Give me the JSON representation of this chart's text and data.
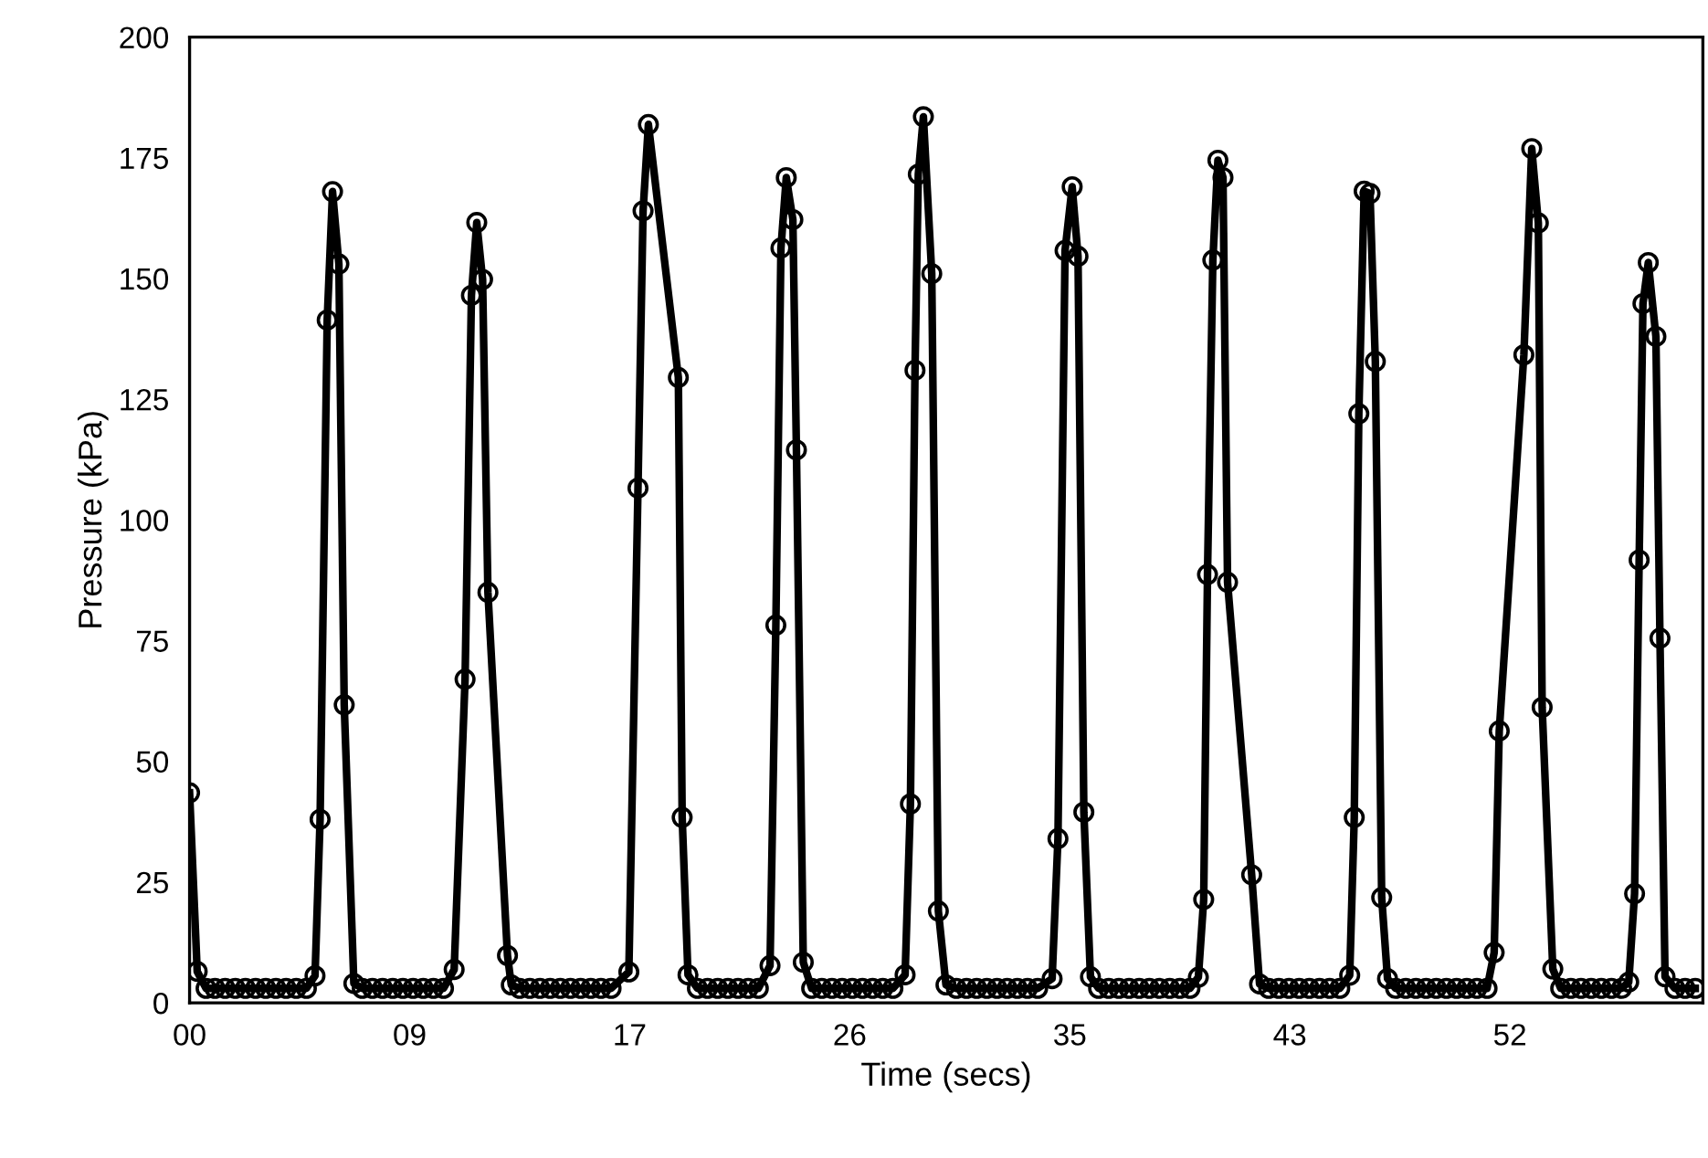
{
  "chart_data": {
    "type": "line",
    "xlabel": "Time (secs)",
    "ylabel": "Pressure (kPa)",
    "xlim": [
      0,
      59.6
    ],
    "ylim": [
      0,
      200
    ],
    "xticks": [
      {
        "value": 0,
        "label": "00"
      },
      {
        "value": 8.667,
        "label": "09"
      },
      {
        "value": 17.333,
        "label": "17"
      },
      {
        "value": 26,
        "label": "26"
      },
      {
        "value": 34.667,
        "label": "35"
      },
      {
        "value": 43.333,
        "label": "43"
      },
      {
        "value": 52,
        "label": "52"
      }
    ],
    "yticks": [
      0,
      25,
      50,
      75,
      100,
      125,
      150,
      175,
      200
    ],
    "grid": false,
    "marker": "circle",
    "line_style": "solid",
    "series": [
      {
        "color": "#000000",
        "x": [
          0,
          0.3,
          0.65,
          1.0,
          1.4,
          1.8,
          2.2,
          2.6,
          3.0,
          3.4,
          3.8,
          4.2,
          4.6,
          4.94,
          5.14,
          5.42,
          5.63,
          5.88,
          6.09,
          6.47,
          6.8,
          7.2,
          7.6,
          8.0,
          8.4,
          8.8,
          9.2,
          9.6,
          10.0,
          10.42,
          10.85,
          11.1,
          11.31,
          11.54,
          11.75,
          12.52,
          12.67,
          13.0,
          13.4,
          13.8,
          14.2,
          14.6,
          15.0,
          15.4,
          15.8,
          16.2,
          16.6,
          17.3,
          17.66,
          17.86,
          18.07,
          19.25,
          19.4,
          19.63,
          20.0,
          20.4,
          20.8,
          21.2,
          21.6,
          22.0,
          22.4,
          22.86,
          23.09,
          23.29,
          23.5,
          23.76,
          23.9,
          24.17,
          24.5,
          24.9,
          25.3,
          25.7,
          26.1,
          26.5,
          26.9,
          27.3,
          27.7,
          28.18,
          28.39,
          28.57,
          28.7,
          28.9,
          29.23,
          29.49,
          29.79,
          30.2,
          30.6,
          31.0,
          31.4,
          31.8,
          32.2,
          32.6,
          33.0,
          33.4,
          33.97,
          34.2,
          34.48,
          34.76,
          34.99,
          35.22,
          35.48,
          35.8,
          36.2,
          36.6,
          37.0,
          37.4,
          37.8,
          38.2,
          38.6,
          39.0,
          39.4,
          39.73,
          39.94,
          40.09,
          40.3,
          40.5,
          40.7,
          40.88,
          41.83,
          42.14,
          42.5,
          42.9,
          43.3,
          43.7,
          44.1,
          44.5,
          44.9,
          45.3,
          45.69,
          45.87,
          46.05,
          46.26,
          46.49,
          46.7,
          46.95,
          47.18,
          47.5,
          47.9,
          48.3,
          48.7,
          49.1,
          49.5,
          49.9,
          50.3,
          50.7,
          51.1,
          51.38,
          51.58,
          52.55,
          52.86,
          53.12,
          53.27,
          53.69,
          54.0,
          54.4,
          54.8,
          55.2,
          55.6,
          56.0,
          56.4,
          56.68,
          56.91,
          57.09,
          57.24,
          57.45,
          57.75,
          57.91,
          58.11,
          58.5,
          58.9,
          59.3
        ],
        "values": [
          43.5,
          6.5,
          3,
          3,
          3,
          3,
          3,
          3,
          3,
          3,
          3,
          3,
          3,
          5.6,
          38,
          141.4,
          168,
          153,
          61.7,
          4,
          3,
          3,
          3,
          3,
          3,
          3,
          3,
          3,
          3,
          6.9,
          67,
          146.5,
          161.6,
          149.8,
          85,
          9.8,
          3.7,
          3,
          3,
          3,
          3,
          3,
          3,
          3,
          3,
          3,
          3,
          6.4,
          106.6,
          164,
          181.9,
          129.5,
          38.4,
          5.8,
          3,
          3,
          3,
          3,
          3,
          3,
          3,
          7.7,
          78.2,
          156.3,
          170.9,
          162.2,
          114.5,
          8.4,
          3,
          3,
          3,
          3,
          3,
          3,
          3,
          3,
          3,
          5.8,
          41.2,
          131,
          171.6,
          183.5,
          151,
          19,
          3.7,
          3,
          3,
          3,
          3,
          3,
          3,
          3,
          3,
          3,
          5,
          34,
          155.8,
          169,
          154.6,
          39.5,
          5.4,
          3,
          3,
          3,
          3,
          3,
          3,
          3,
          3,
          3,
          3,
          5.3,
          21.4,
          88.7,
          153.8,
          174.5,
          170.9,
          87.1,
          26.5,
          3.9,
          3,
          3,
          3,
          3,
          3,
          3,
          3,
          3,
          5.7,
          38.4,
          122,
          168.1,
          167.6,
          132.8,
          21.8,
          5,
          3,
          3,
          3,
          3,
          3,
          3,
          3,
          3,
          3,
          3,
          10.4,
          56.3,
          134.2,
          176.9,
          161.5,
          61.2,
          7,
          3,
          3,
          3,
          3,
          3,
          3,
          3,
          4.3,
          22.6,
          91.7,
          144.8,
          153.3,
          138,
          75.5,
          5.4,
          3,
          3,
          3
        ]
      }
    ]
  }
}
